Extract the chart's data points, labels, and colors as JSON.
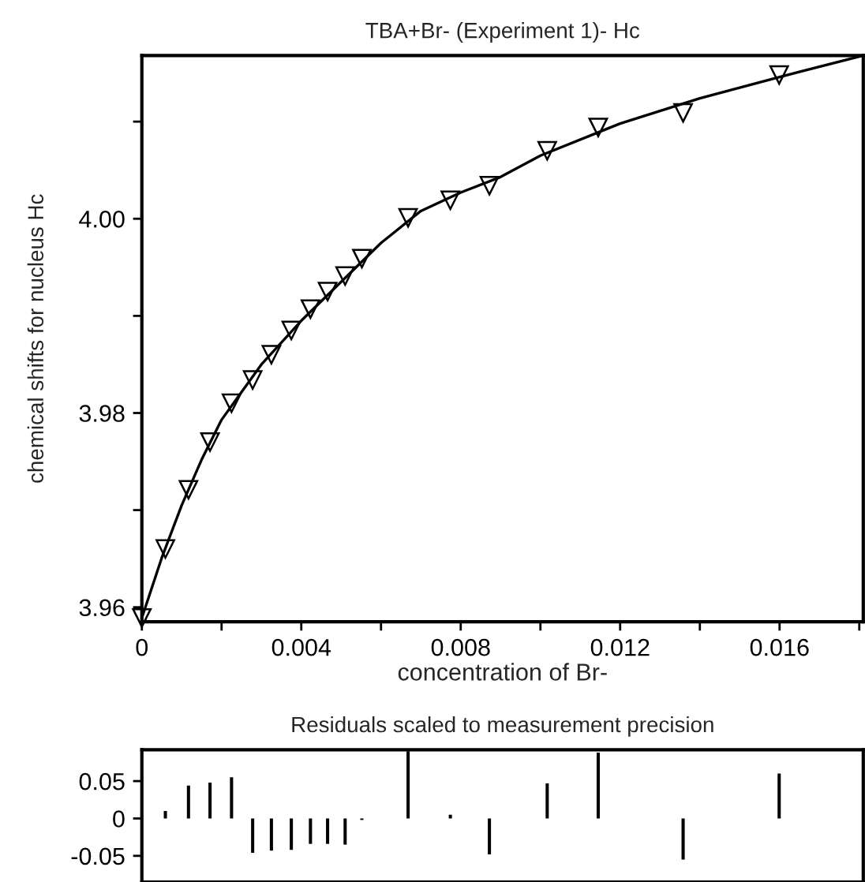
{
  "chart_data": [
    {
      "type": "scatter",
      "title": "TBA+Br- (Experiment 1)- Hc",
      "xlabel": "concentration of Br-",
      "ylabel": "chemical shifts for nucleus Hc",
      "xlim": [
        0,
        0.0181
      ],
      "ylim": [
        3.9585,
        4.0168
      ],
      "xticks": [
        0,
        {
          "value": 0.002,
          "label": null
        },
        0.004,
        {
          "value": 0.006,
          "label": null
        },
        0.008,
        {
          "value": 0.01,
          "label": null
        },
        0.012,
        {
          "value": 0.014,
          "label": null
        },
        0.016,
        {
          "value": 0.018,
          "label": null
        }
      ],
      "yticks": [
        3.96,
        {
          "value": 3.97,
          "label": null
        },
        3.98,
        {
          "value": 3.99,
          "label": null
        },
        {
          "value": 4.0,
          "label": "4.00"
        },
        {
          "value": 4.01,
          "label": null
        }
      ],
      "grid": false,
      "legend": false,
      "series": [
        {
          "type": "scatter",
          "marker": "triangle",
          "color": "#000000",
          "x": [
            0,
            0.00059,
            0.00117,
            0.00171,
            0.00225,
            0.00278,
            0.00325,
            0.00375,
            0.00423,
            0.00466,
            0.0051,
            0.00552,
            0.00668,
            0.00774,
            0.00872,
            0.01017,
            0.01145,
            0.01358,
            0.01599
          ],
          "values": [
            3.9589,
            3.966,
            3.9721,
            3.977,
            3.981,
            3.9834,
            3.986,
            3.9885,
            3.9907,
            3.9925,
            3.9941,
            3.9959,
            4.0001,
            4.0019,
            4.0034,
            4.007,
            4.0094,
            4.0109,
            4.0148
          ]
        },
        {
          "type": "line",
          "marker": "none",
          "line_style": "solid",
          "color": "#000000",
          "x": [
            0,
            0.0005,
            0.001,
            0.0015,
            0.002,
            0.003,
            0.004,
            0.005,
            0.006,
            0.007,
            0.008,
            0.009,
            0.01,
            0.012,
            0.014,
            0.016,
            0.0181
          ],
          "values": [
            3.9589,
            3.9651,
            3.9705,
            3.9752,
            3.9793,
            3.985,
            3.9895,
            3.9935,
            3.9975,
            4.0008,
            4.0027,
            4.0043,
            4.0065,
            4.0098,
            4.0124,
            4.0146,
            4.0168
          ]
        }
      ]
    },
    {
      "type": "bar",
      "title": "Residuals scaled to measurement precision",
      "tick_labels": "y",
      "xlim": [
        0,
        0.0181
      ],
      "ylim": [
        -0.085,
        0.092
      ],
      "yticks": [
        -0.05,
        0,
        0.05
      ],
      "grid": false,
      "legend": false,
      "x": [
        0,
        0.00059,
        0.00117,
        0.00171,
        0.00225,
        0.00278,
        0.00325,
        0.00375,
        0.00423,
        0.00466,
        0.0051,
        0.00552,
        0.00668,
        0.00774,
        0.00872,
        0.01017,
        0.01145,
        0.01358,
        0.01599
      ],
      "values": [
        0,
        0.01,
        0.044,
        0.048,
        0.055,
        -0.046,
        -0.043,
        -0.042,
        -0.034,
        -0.034,
        -0.035,
        -0.002,
        0.09,
        0.005,
        -0.048,
        0.047,
        0.088,
        -0.055,
        0.06
      ],
      "color": "#000000"
    }
  ]
}
